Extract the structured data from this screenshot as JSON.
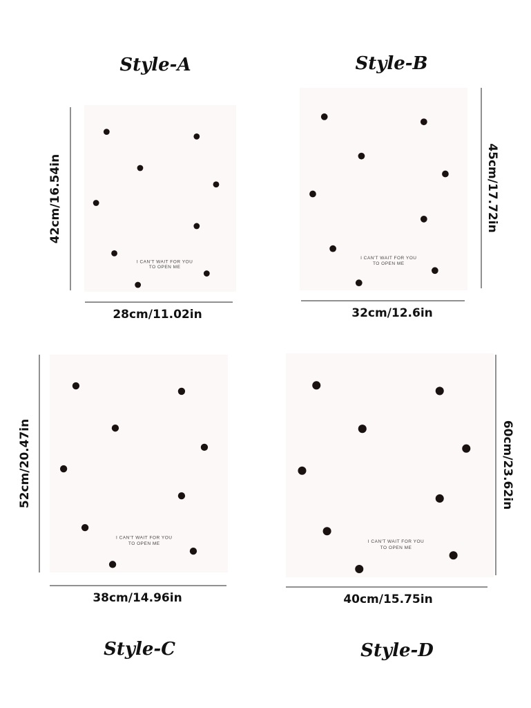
{
  "styles": [
    {
      "name": "Style-A",
      "height": "42cm/16.54in",
      "width": "28cm/11.02in",
      "card_text": [
        "I CAN'T WAIT FOR YOU",
        "TO OPEN ME"
      ]
    },
    {
      "name": "Style-B",
      "height": "45cm/17.72in",
      "width": "32cm/12.6in",
      "card_text": [
        "I CAN'T WAIT FOR YOU",
        "TO OPEN ME"
      ]
    },
    {
      "name": "Style-C",
      "height": "52cm/20.47in",
      "width": "38cm/14.96in",
      "card_text": [
        "I CAN'T WAIT FOR YOU",
        "TO OPEN ME"
      ]
    },
    {
      "name": "Style-D",
      "height": "60cm/23.62in",
      "width": "40cm/15.75in",
      "card_text": [
        "I CAN'T WAIT FOR YOU",
        "TO OPEN ME"
      ]
    }
  ]
}
